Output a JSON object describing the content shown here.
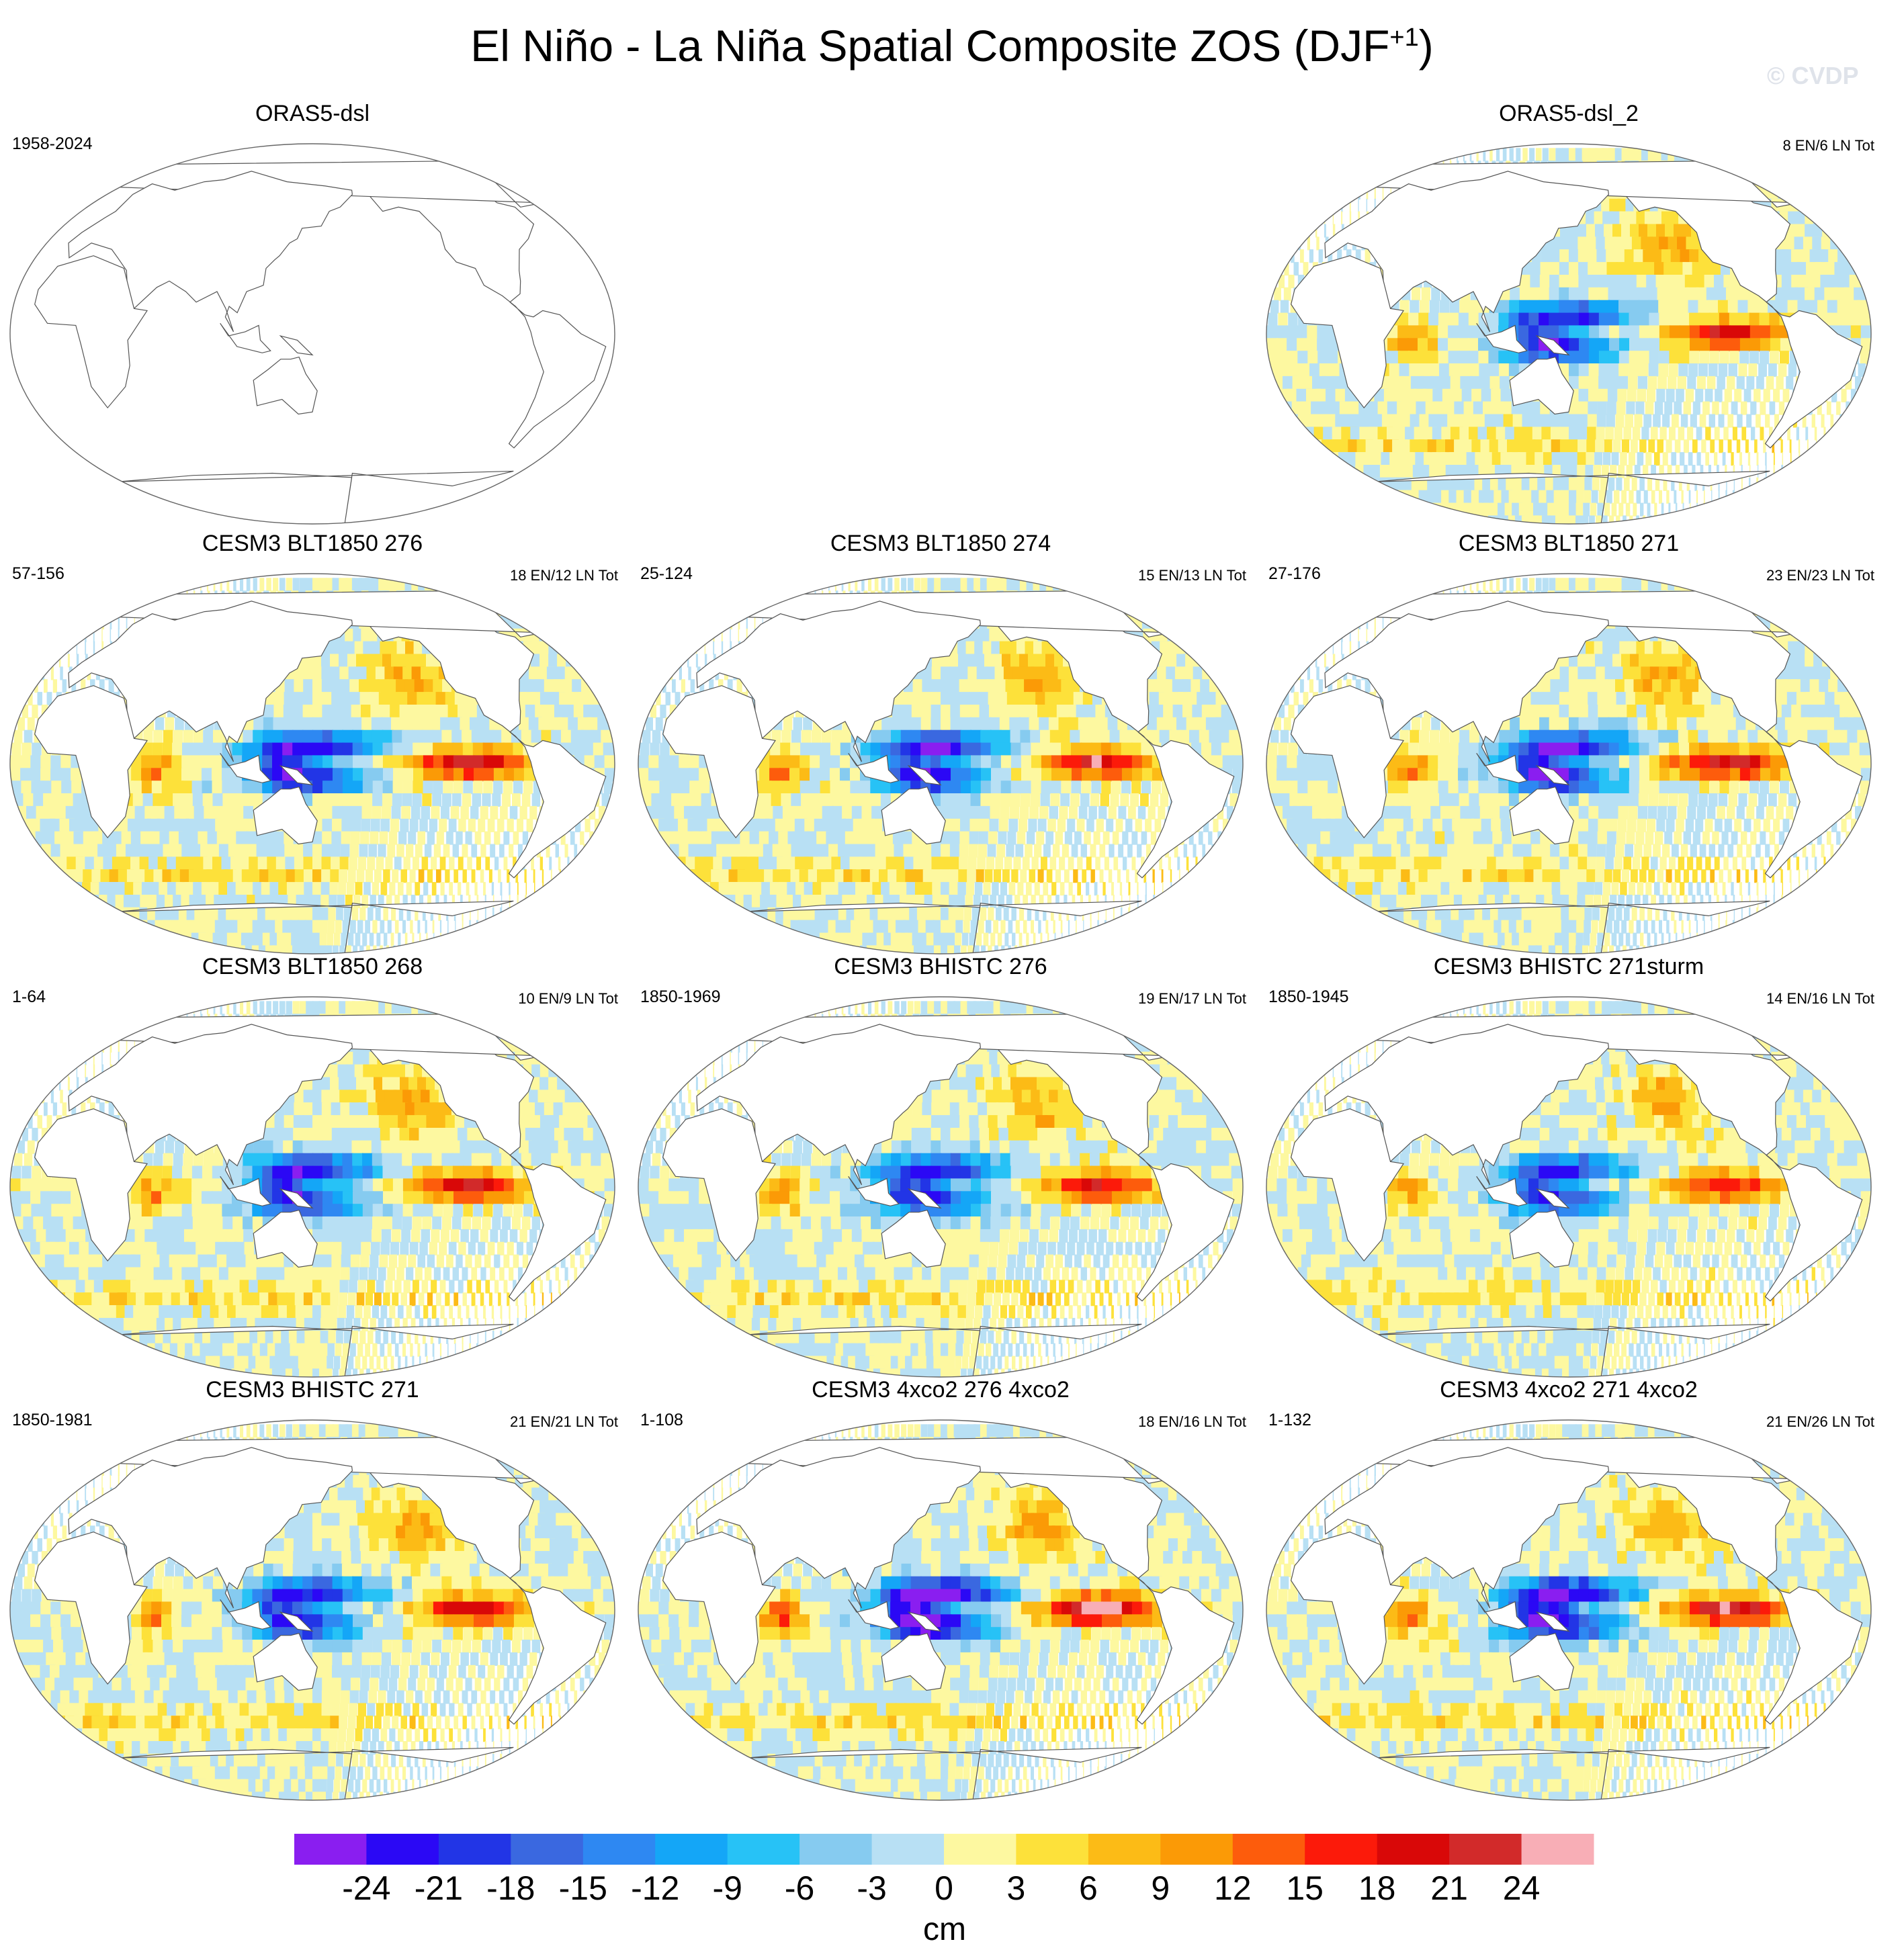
{
  "title": {
    "main": "El Niño - La Niña Spatial Composite ZOS (DJF",
    "sup": "+1",
    "close": ")"
  },
  "watermark": "© CVDP",
  "panels": [
    {
      "title": "ORAS5-dsl",
      "left": "1958-2024",
      "right": "",
      "filled": false,
      "strength": 0
    },
    {
      "title": "ORAS5-dsl_2",
      "left": "",
      "right": "8 EN/6 LN Tot",
      "filled": true,
      "strength": 0.85
    },
    {
      "title": "CESM3 BLT1850 276",
      "left": "57-156",
      "right": "18 EN/12 LN Tot",
      "filled": true,
      "strength": 0.95
    },
    {
      "title": "CESM3 BLT1850 274",
      "left": "25-124",
      "right": "15 EN/13 LN Tot",
      "filled": true,
      "strength": 0.9
    },
    {
      "title": "CESM3 BLT1850 271",
      "left": "27-176",
      "right": "23 EN/23 LN Tot",
      "filled": true,
      "strength": 0.95
    },
    {
      "title": "CESM3 BLT1850 268",
      "left": "1-64",
      "right": "10 EN/9 LN Tot",
      "filled": true,
      "strength": 0.9
    },
    {
      "title": "CESM3 BHISTC 276",
      "left": "1850-1969",
      "right": "19 EN/17 LN Tot",
      "filled": true,
      "strength": 0.85
    },
    {
      "title": "CESM3 BHISTC 271sturm",
      "left": "1850-1945",
      "right": "14 EN/16 LN Tot",
      "filled": true,
      "strength": 0.8
    },
    {
      "title": "CESM3 BHISTC 271",
      "left": "1850-1981",
      "right": "21 EN/21 LN Tot",
      "filled": true,
      "strength": 0.85
    },
    {
      "title": "CESM3 4xco2 276 4xco2",
      "left": "1-108",
      "right": "18 EN/16 LN Tot",
      "filled": true,
      "strength": 1.15
    },
    {
      "title": "CESM3 4xco2 271 4xco2",
      "left": "1-132",
      "right": "21 EN/26 LN Tot",
      "filled": true,
      "strength": 1.05
    }
  ],
  "colorbar": {
    "label": "cm",
    "ticks": [
      "-24",
      "-21",
      "-18",
      "-15",
      "-12",
      "-9",
      "-6",
      "-3",
      "0",
      "3",
      "6",
      "9",
      "12",
      "15",
      "18",
      "21",
      "24"
    ],
    "colors": [
      "#8a1ef0",
      "#2b08f5",
      "#2235e6",
      "#3a68e0",
      "#2e88f2",
      "#14a6f7",
      "#27c2f6",
      "#86cbf0",
      "#b8e0f4",
      "#fdf8a0",
      "#fde13a",
      "#fcbb16",
      "#fb9a06",
      "#fd5c0c",
      "#fc1a0a",
      "#d90808",
      "#d22a2a",
      "#f8aeb6"
    ]
  },
  "chart_data": {
    "type": "heatmap",
    "title": "El Niño - La Niña Spatial Composite ZOS (DJF+1)",
    "variable": "ZOS",
    "units": "cm",
    "levels": [
      -24,
      -21,
      -18,
      -15,
      -12,
      -9,
      -6,
      -3,
      0,
      3,
      6,
      9,
      12,
      15,
      18,
      21,
      24
    ],
    "panels": [
      "ORAS5-dsl",
      "ORAS5-dsl_2",
      "CESM3 BLT1850 276",
      "CESM3 BLT1850 274",
      "CESM3 BLT1850 271",
      "CESM3 BLT1850 268",
      "CESM3 BHISTC 276",
      "CESM3 BHISTC 271sturm",
      "CESM3 BHISTC 271",
      "CESM3 4xco2 276 4xco2",
      "CESM3 4xco2 271 4xco2"
    ]
  }
}
